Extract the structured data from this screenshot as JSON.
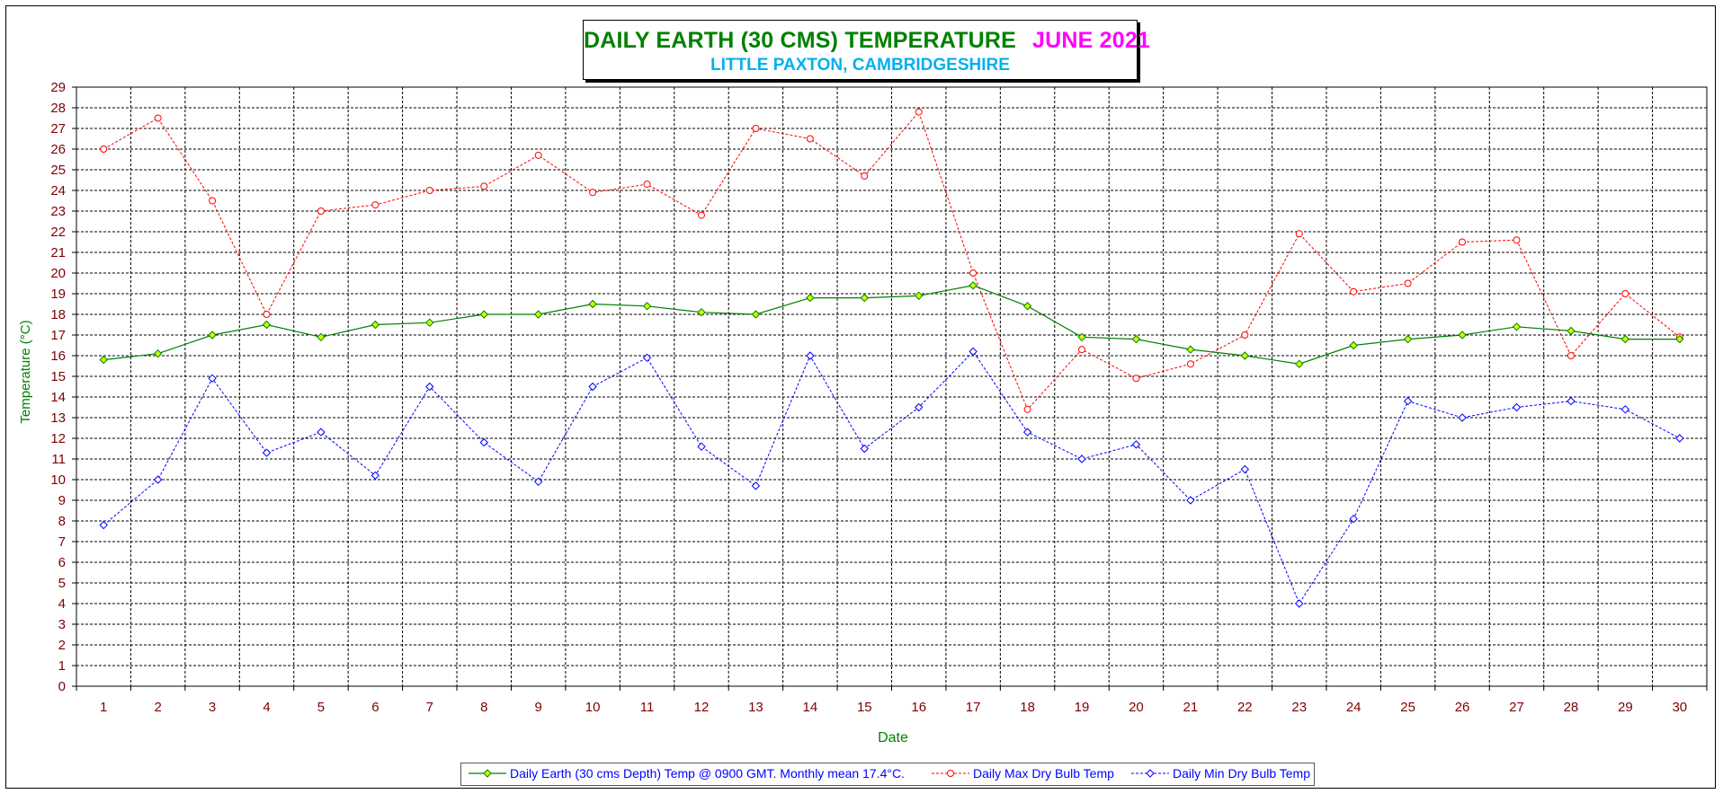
{
  "chart_data": {
    "type": "line",
    "title": "DAILY EARTH (30 CMS) TEMPERATURE",
    "title_month": "JUNE 2021",
    "subtitle": "LITTLE PAXTON, CAMBRIDGESHIRE",
    "xlabel": "Date",
    "ylabel": "Temperature (°C)",
    "ylim": [
      0,
      29
    ],
    "grid": true,
    "legend_position": "bottom",
    "x": [
      1,
      2,
      3,
      4,
      5,
      6,
      7,
      8,
      9,
      10,
      11,
      12,
      13,
      14,
      15,
      16,
      17,
      18,
      19,
      20,
      21,
      22,
      23,
      24,
      25,
      26,
      27,
      28,
      29,
      30
    ],
    "series": [
      {
        "name": "Daily Earth (30 cms Depth) Temp @ 0900 GMT. Monthly mean 17.4°C.",
        "color": "#008000",
        "marker_color": "#ccff00",
        "line_style": "solid",
        "marker": "diamond",
        "values": [
          15.8,
          16.1,
          17.0,
          17.5,
          16.9,
          17.5,
          17.6,
          18.0,
          18.0,
          18.5,
          18.4,
          18.1,
          18.0,
          18.8,
          18.8,
          18.9,
          19.4,
          18.4,
          16.9,
          16.8,
          16.3,
          16.0,
          15.6,
          16.5,
          16.8,
          17.0,
          17.4,
          17.2,
          16.8,
          16.8
        ]
      },
      {
        "name": "Daily Max Dry Bulb Temp",
        "color": "#ff0000",
        "marker_color": "#ffffff",
        "line_style": "dashed",
        "marker": "circle",
        "values": [
          26.0,
          27.5,
          23.5,
          18.0,
          23.0,
          23.3,
          24.0,
          24.2,
          25.7,
          23.9,
          24.3,
          22.8,
          27.0,
          26.5,
          24.7,
          27.8,
          20.0,
          13.4,
          16.3,
          14.9,
          15.6,
          17.0,
          21.9,
          19.1,
          19.5,
          21.5,
          21.6,
          16.0,
          19.0,
          16.9
        ]
      },
      {
        "name": "Daily Min Dry Bulb Temp",
        "color": "#0000ff",
        "marker_color": "#ffffff",
        "line_style": "dashed",
        "marker": "diamond",
        "values": [
          7.8,
          10.0,
          14.9,
          11.3,
          12.3,
          10.2,
          14.5,
          11.8,
          9.9,
          14.5,
          15.9,
          11.6,
          9.7,
          16.0,
          11.5,
          13.5,
          16.2,
          12.3,
          11.0,
          11.7,
          9.0,
          10.5,
          4.0,
          8.1,
          13.8,
          13.0,
          13.5,
          13.8,
          13.4,
          12.0
        ]
      }
    ]
  }
}
